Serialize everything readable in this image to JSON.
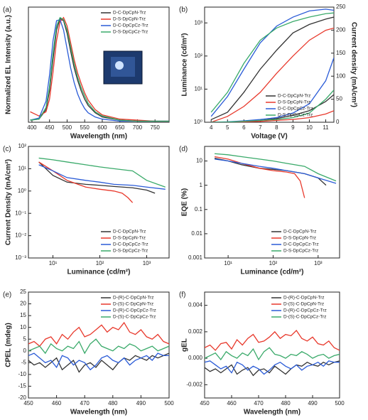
{
  "chart_data": [
    {
      "type": "line",
      "panel_label": "(a)",
      "xlabel": "Wavelength (nm)",
      "ylabel": "Normalized EL Intensity (a.u.)",
      "legend": "upper right",
      "xlim": [
        390,
        790
      ],
      "xticks": [
        400,
        450,
        500,
        550,
        600,
        650,
        700,
        750
      ],
      "ylim": [
        0,
        1.1
      ],
      "yticks": [],
      "x": [
        395,
        420,
        440,
        450,
        460,
        470,
        480,
        490,
        500,
        510,
        520,
        530,
        540,
        550,
        560,
        580,
        600,
        650,
        700,
        750,
        790
      ],
      "series": [
        {
          "name": "D-C-DpCpN-Trz",
          "color": "#333333",
          "values": [
            0.02,
            0.03,
            0.12,
            0.3,
            0.6,
            0.88,
            0.99,
            0.97,
            0.85,
            0.68,
            0.52,
            0.4,
            0.3,
            0.22,
            0.16,
            0.09,
            0.05,
            0.02,
            0.01,
            0.01,
            0.01
          ]
        },
        {
          "name": "D-S-DpCpN-Trz",
          "color": "#e8392c",
          "values": [
            0.1,
            0.06,
            0.1,
            0.22,
            0.48,
            0.78,
            0.96,
            1.0,
            0.92,
            0.76,
            0.6,
            0.47,
            0.37,
            0.28,
            0.21,
            0.12,
            0.07,
            0.03,
            0.02,
            0.01,
            0.01
          ]
        },
        {
          "name": "D-C-DpCpCz-Trz",
          "color": "#2a5bd7",
          "values": [
            0.02,
            0.04,
            0.2,
            0.45,
            0.78,
            0.97,
            0.98,
            0.88,
            0.7,
            0.52,
            0.38,
            0.27,
            0.19,
            0.13,
            0.09,
            0.05,
            0.03,
            0.01,
            0.01,
            0.01,
            0.01
          ]
        },
        {
          "name": "D-S-DpCpCz-Trz",
          "color": "#3aaa6a",
          "values": [
            0.02,
            0.03,
            0.14,
            0.34,
            0.66,
            0.92,
            1.0,
            0.98,
            0.88,
            0.72,
            0.56,
            0.43,
            0.33,
            0.25,
            0.18,
            0.1,
            0.06,
            0.02,
            0.01,
            0.01,
            0.01
          ]
        }
      ]
    },
    {
      "type": "line",
      "panel_label": "(b)",
      "xlabel": "Voltage (V)",
      "ylabel": "Luminance (cd/m²)",
      "y2label": "Current density (mA/cm²)",
      "legend": "lower right",
      "xlim": [
        3.6,
        11.5
      ],
      "xticks": [
        4,
        5,
        6,
        7,
        8,
        9,
        10,
        11
      ],
      "yscale": "log",
      "ylim": [
        1,
        3000
      ],
      "yticks": [
        {
          "value": 1,
          "label": "10⁰"
        },
        {
          "value": 10,
          "label": "10¹"
        },
        {
          "value": 100,
          "label": "10²"
        },
        {
          "value": 1000,
          "label": "10³"
        }
      ],
      "y2lim": [
        0,
        250
      ],
      "y2ticks": [
        0,
        50,
        100,
        150,
        200,
        250
      ],
      "series": [
        {
          "name": "D-C-DpCpN-Trz",
          "color": "#333333",
          "x": [
            4,
            5,
            6,
            7,
            8,
            9,
            10,
            11,
            11.5
          ],
          "values": [
            1.2,
            2,
            8,
            40,
            150,
            500,
            900,
            1300,
            1500
          ]
        },
        {
          "name": "D-S-DpCpN-Trz",
          "color": "#e8392c",
          "x": [
            4,
            5,
            6,
            7,
            8,
            9,
            10,
            11,
            11.5
          ],
          "values": [
            1,
            1.5,
            3,
            8,
            30,
            100,
            300,
            600,
            700
          ]
        },
        {
          "name": "D-C-DpCpCz-Trz",
          "color": "#2a5bd7",
          "x": [
            4,
            5,
            6,
            7,
            8,
            9,
            10,
            11,
            11.5
          ],
          "values": [
            1.5,
            6,
            40,
            250,
            800,
            1500,
            2300,
            2600,
            2400
          ]
        },
        {
          "name": "D-S-DpCpCz-Trz",
          "color": "#3aaa6a",
          "x": [
            4,
            5,
            6,
            7,
            8,
            9,
            10,
            11,
            11.5
          ],
          "values": [
            2,
            8,
            60,
            300,
            700,
            1100,
            1500,
            1900,
            2000
          ]
        },
        {
          "axis": "y2",
          "color": "#333333",
          "x": [
            4,
            5,
            6,
            7,
            8,
            9,
            10,
            11,
            11.5
          ],
          "values": [
            0,
            0,
            2,
            4,
            8,
            15,
            25,
            45,
            60
          ]
        },
        {
          "axis": "y2",
          "color": "#e8392c",
          "x": [
            4,
            5,
            6,
            7,
            8,
            9,
            10,
            11,
            11.5
          ],
          "values": [
            0,
            0.5,
            1,
            2,
            4,
            6,
            10,
            18,
            25
          ]
        },
        {
          "axis": "y2",
          "color": "#2a5bd7",
          "x": [
            4,
            5,
            6,
            7,
            8,
            9,
            10,
            11,
            11.5
          ],
          "values": [
            0,
            1,
            3,
            6,
            10,
            20,
            40,
            90,
            140
          ]
        },
        {
          "axis": "y2",
          "color": "#3aaa6a",
          "x": [
            4,
            5,
            6,
            7,
            8,
            9,
            10,
            11,
            11.5
          ],
          "values": [
            0,
            0.5,
            2,
            4,
            6,
            10,
            20,
            50,
            70
          ]
        }
      ]
    },
    {
      "type": "line",
      "panel_label": "(c)",
      "xlabel": "Luminance (cd/m²)",
      "ylabel": "Current Density (mA/cm²)",
      "legend": "lower right",
      "xscale": "log",
      "xlim": [
        3,
        3000
      ],
      "xticks": [
        {
          "value": 10,
          "label": "10¹"
        },
        {
          "value": 100,
          "label": "10²"
        },
        {
          "value": 1000,
          "label": "10³"
        }
      ],
      "yscale": "log",
      "ylim": [
        0.001,
        100
      ],
      "yticks": [
        {
          "value": 0.001,
          "label": "10⁻³"
        },
        {
          "value": 0.01,
          "label": "10⁻²"
        },
        {
          "value": 0.1,
          "label": "10⁻¹"
        },
        {
          "value": 1,
          "label": "10⁰"
        },
        {
          "value": 10,
          "label": "10¹"
        },
        {
          "value": 100,
          "label": "10²"
        }
      ],
      "series": [
        {
          "name": "D-C-DpCpN-Trz",
          "color": "#333333",
          "x": [
            5,
            10,
            20,
            50,
            100,
            200,
            500,
            1000,
            1500
          ],
          "values": [
            20,
            5,
            2.5,
            2,
            1.8,
            1.6,
            1.4,
            1.1,
            0.8
          ]
        },
        {
          "name": "D-S-DpCpN-Trz",
          "color": "#e8392c",
          "x": [
            5,
            10,
            20,
            50,
            100,
            200,
            300,
            400,
            500
          ],
          "values": [
            20,
            8,
            3,
            1.5,
            1.2,
            1,
            0.8,
            0.5,
            0.3
          ]
        },
        {
          "name": "D-C-DpCpCz-Trz",
          "color": "#2a5bd7",
          "x": [
            5,
            10,
            20,
            50,
            100,
            200,
            500,
            1000,
            2500
          ],
          "values": [
            15,
            8,
            4,
            3,
            2.5,
            2,
            1.8,
            1.5,
            1.2
          ]
        },
        {
          "name": "D-S-DpCpCz-Trz",
          "color": "#3aaa6a",
          "x": [
            5,
            10,
            20,
            50,
            100,
            200,
            500,
            1000,
            2500
          ],
          "values": [
            30,
            25,
            20,
            15,
            12,
            10,
            8,
            3,
            1.5
          ]
        }
      ]
    },
    {
      "type": "line",
      "panel_label": "(d)",
      "xlabel": "Luminance (cd/m²)",
      "ylabel": "EQE (%)",
      "legend": "lower right",
      "xscale": "log",
      "xlim": [
        3,
        3000
      ],
      "xticks": [
        {
          "value": 10,
          "label": "10¹"
        },
        {
          "value": 100,
          "label": "10²"
        },
        {
          "value": 1000,
          "label": "10³"
        }
      ],
      "yscale": "log",
      "ylim": [
        0.001,
        40
      ],
      "yticks": [
        0.001,
        0.01,
        0.1,
        1,
        10
      ],
      "series": [
        {
          "name": "D-C-DpCpN-Trz",
          "color": "#333333",
          "x": [
            5,
            10,
            20,
            50,
            100,
            200,
            500,
            1000,
            1500
          ],
          "values": [
            13,
            10,
            7,
            5,
            4.5,
            4,
            3,
            2,
            1
          ]
        },
        {
          "name": "D-S-DpCpN-Trz",
          "color": "#e8392c",
          "x": [
            5,
            10,
            20,
            50,
            100,
            200,
            300,
            400,
            500
          ],
          "values": [
            15,
            12,
            8,
            5,
            4,
            3.5,
            3,
            1.5,
            0.3
          ]
        },
        {
          "name": "D-C-DpCpCz-Trz",
          "color": "#2a5bd7",
          "x": [
            5,
            10,
            20,
            50,
            100,
            200,
            500,
            1000,
            2500
          ],
          "values": [
            12,
            10,
            8,
            6,
            5,
            4,
            3,
            2,
            1.2
          ]
        },
        {
          "name": "D-S-DpCpCz-Trz",
          "color": "#3aaa6a",
          "x": [
            5,
            10,
            20,
            50,
            100,
            200,
            500,
            1000,
            2500
          ],
          "values": [
            20,
            18,
            15,
            12,
            10,
            8,
            6,
            3,
            1.5
          ]
        }
      ]
    },
    {
      "type": "line",
      "panel_label": "(e)",
      "xlabel": "Wavelength (nm)",
      "ylabel": "CPEL (mdeg)",
      "legend": "upper right",
      "xlim": [
        450,
        500
      ],
      "xticks": [
        450,
        460,
        470,
        480,
        490,
        500
      ],
      "ylim": [
        -20,
        25
      ],
      "yticks": [
        -20,
        -15,
        -10,
        -5,
        0,
        5,
        10,
        15,
        20,
        25
      ],
      "x": [
        450,
        452,
        454,
        456,
        458,
        460,
        462,
        464,
        466,
        468,
        470,
        472,
        474,
        476,
        478,
        480,
        482,
        484,
        486,
        488,
        490,
        492,
        494,
        496,
        498,
        500
      ],
      "series": [
        {
          "name": "D-(R)-C-DpCpN-Trz",
          "color": "#333333",
          "values": [
            -4,
            -6,
            -5,
            -7,
            -5,
            -3,
            -8,
            -6,
            -4,
            -9,
            -6,
            -5,
            -7,
            -4,
            -6,
            -8,
            -5,
            -3,
            -4,
            -2,
            -3,
            -4,
            -2,
            -3,
            -2,
            -1
          ]
        },
        {
          "name": "D-(S)-C-DpCpN-Trz",
          "color": "#e8392c",
          "values": [
            3,
            4,
            2,
            5,
            6,
            3,
            7,
            5,
            8,
            10,
            6,
            7,
            9,
            11,
            8,
            10,
            9,
            12,
            8,
            7,
            9,
            6,
            5,
            7,
            4,
            3
          ]
        },
        {
          "name": "D-(R)-C-DpCpCz-Trz",
          "color": "#2a5bd7",
          "values": [
            -2,
            -1,
            -3,
            -5,
            -4,
            -7,
            -2,
            -3,
            -6,
            -4,
            -5,
            -8,
            -6,
            -3,
            -2,
            -4,
            -5,
            -3,
            -6,
            -4,
            -3,
            -2,
            -4,
            -1,
            -2,
            -2
          ]
        },
        {
          "name": "D-(S)-C-DpCpCz-Trz",
          "color": "#3aaa6a",
          "values": [
            0,
            1,
            2,
            -1,
            3,
            1,
            0,
            2,
            1,
            4,
            -1,
            3,
            5,
            2,
            1,
            0,
            2,
            1,
            3,
            2,
            0,
            1,
            2,
            0,
            1,
            2
          ]
        }
      ]
    },
    {
      "type": "line",
      "panel_label": "(f)",
      "xlabel": "Wavelength (nm)",
      "ylabel": "gEL",
      "legend": "upper right",
      "xlim": [
        450,
        500
      ],
      "xticks": [
        450,
        460,
        470,
        480,
        490,
        500
      ],
      "ylim": [
        -0.003,
        0.005
      ],
      "yticks": [
        -0.002,
        {
          "value": 0,
          "label": "0.000"
        },
        0.002,
        0.004
      ],
      "x": [
        450,
        452,
        454,
        456,
        458,
        460,
        462,
        464,
        466,
        468,
        470,
        472,
        474,
        476,
        478,
        480,
        482,
        484,
        486,
        488,
        490,
        492,
        494,
        496,
        498,
        500
      ],
      "series": [
        {
          "name": "D-(R)-C-DpCpN-Trz",
          "color": "#333333",
          "values": [
            -0.0007,
            -0.001,
            -0.0008,
            -0.0011,
            -0.0008,
            -0.0005,
            -0.0012,
            -0.0009,
            -0.0007,
            -0.0013,
            -0.0009,
            -0.0008,
            -0.0011,
            -0.0006,
            -0.0009,
            -0.0012,
            -0.0008,
            -0.0005,
            -0.0006,
            -0.0003,
            -0.0005,
            -0.0006,
            -0.0003,
            -0.0005,
            -0.0003,
            -0.0002
          ]
        },
        {
          "name": "D-(S)-C-DpCpN-Trz",
          "color": "#e8392c",
          "values": [
            0.0008,
            0.001,
            0.0006,
            0.0011,
            0.0012,
            0.0007,
            0.0014,
            0.001,
            0.0015,
            0.0018,
            0.0012,
            0.0013,
            0.0016,
            0.002,
            0.0015,
            0.0018,
            0.0017,
            0.0021,
            0.0015,
            0.0013,
            0.0016,
            0.0011,
            0.001,
            0.0013,
            0.0008,
            0.0006
          ]
        },
        {
          "name": "D-(R)-C-DpCpCz-Trz",
          "color": "#2a5bd7",
          "values": [
            -0.0003,
            -0.0002,
            -0.0005,
            -0.0008,
            -0.0006,
            -0.0011,
            -0.0003,
            -0.0005,
            -0.0009,
            -0.0006,
            -0.0008,
            -0.0012,
            -0.0009,
            -0.0005,
            -0.0003,
            -0.0006,
            -0.0008,
            -0.0005,
            -0.0009,
            -0.0006,
            -0.0005,
            -0.0003,
            -0.0006,
            -0.0002,
            -0.0003,
            -0.0003
          ]
        },
        {
          "name": "D-(S)-C-DpCpCz-Trz",
          "color": "#3aaa6a",
          "values": [
            0,
            0.0002,
            0.0004,
            -0.0001,
            0.0005,
            0.0002,
            0,
            0.0004,
            0.0002,
            0.0007,
            -0.0001,
            0.0005,
            0.0008,
            0.0003,
            0.0002,
            0,
            0.0003,
            0.0002,
            0.0005,
            0.0003,
            0,
            0.0002,
            0.0003,
            0,
            0.0002,
            0.0003
          ]
        }
      ]
    }
  ]
}
